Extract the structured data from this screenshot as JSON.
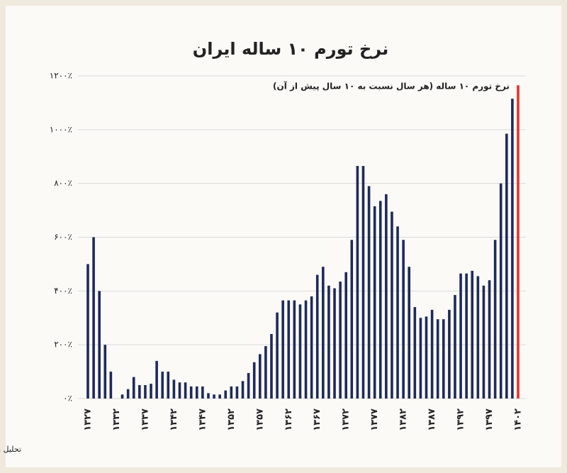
{
  "chart_data": {
    "type": "bar",
    "title": "نرخ تورم ۱۰ ساله ایران",
    "subtitle": "نرخ تورم ۱۰ ساله (هر سال نسبت به ۱۰ سال پیش از آن)",
    "source": "تحلیل و استنتاج: احسان سلطانی بر اساس داده های بانک مرکزی",
    "categories": [
      "۱۳۲۷",
      null,
      null,
      null,
      null,
      "۱۳۳۲",
      null,
      null,
      null,
      null,
      "۱۳۳۷",
      null,
      null,
      null,
      null,
      "۱۳۴۲",
      null,
      null,
      null,
      null,
      "۱۳۴۷",
      null,
      null,
      null,
      null,
      "۱۳۵۲",
      null,
      null,
      null,
      null,
      "۱۳۵۷",
      null,
      null,
      null,
      null,
      "۱۳۶۲",
      null,
      null,
      null,
      null,
      "۱۳۶۷",
      null,
      null,
      null,
      null,
      "۱۳۷۲",
      null,
      null,
      null,
      null,
      "۱۳۷۷",
      null,
      null,
      null,
      null,
      "۱۳۸۲",
      null,
      null,
      null,
      null,
      "۱۳۸۷",
      null,
      null,
      null,
      null,
      "۱۳۹۲",
      null,
      null,
      null,
      null,
      "۱۳۹۷",
      null,
      null,
      null,
      null,
      "۱۴۰۲"
    ],
    "values": [
      500,
      600,
      400,
      200,
      100,
      0,
      15,
      35,
      80,
      50,
      50,
      55,
      140,
      100,
      100,
      70,
      60,
      60,
      45,
      45,
      45,
      20,
      15,
      15,
      30,
      45,
      45,
      65,
      95,
      135,
      165,
      195,
      240,
      320,
      365,
      365,
      365,
      350,
      365,
      380,
      460,
      490,
      420,
      410,
      435,
      470,
      590,
      865,
      865,
      790,
      715,
      735,
      760,
      695,
      640,
      590,
      490,
      340,
      300,
      305,
      330,
      295,
      295,
      330,
      385,
      465,
      465,
      475,
      455,
      420,
      440,
      590,
      800,
      985,
      1115,
      1165
    ],
    "colors": [
      "#1f2a5c",
      "#1f2a5c",
      "#1f2a5c",
      "#1f2a5c",
      "#1f2a5c",
      "#1f2a5c",
      "#1f2a5c",
      "#1f2a5c",
      "#1f2a5c",
      "#1f2a5c",
      "#1f2a5c",
      "#1f2a5c",
      "#1f2a5c",
      "#1f2a5c",
      "#1f2a5c",
      "#1f2a5c",
      "#1f2a5c",
      "#1f2a5c",
      "#1f2a5c",
      "#1f2a5c",
      "#1f2a5c",
      "#1f2a5c",
      "#1f2a5c",
      "#1f2a5c",
      "#1f2a5c",
      "#1f2a5c",
      "#1f2a5c",
      "#1f2a5c",
      "#1f2a5c",
      "#1f2a5c",
      "#1f2a5c",
      "#1f2a5c",
      "#1f2a5c",
      "#1f2a5c",
      "#1f2a5c",
      "#1f2a5c",
      "#1f2a5c",
      "#1f2a5c",
      "#1f2a5c",
      "#1f2a5c",
      "#1f2a5c",
      "#1f2a5c",
      "#1f2a5c",
      "#1f2a5c",
      "#1f2a5c",
      "#1f2a5c",
      "#1f2a5c",
      "#1f2a5c",
      "#1f2a5c",
      "#1f2a5c",
      "#1f2a5c",
      "#1f2a5c",
      "#1f2a5c",
      "#1f2a5c",
      "#1f2a5c",
      "#1f2a5c",
      "#1f2a5c",
      "#1f2a5c",
      "#1f2a5c",
      "#1f2a5c",
      "#1f2a5c",
      "#1f2a5c",
      "#1f2a5c",
      "#1f2a5c",
      "#1f2a5c",
      "#1f2a5c",
      "#1f2a5c",
      "#1f2a5c",
      "#1f2a5c",
      "#1f2a5c",
      "#1f2a5c",
      "#1f2a5c",
      "#1f2a5c",
      "#1f2a5c",
      "#1f2a5c",
      "#e8312a"
    ],
    "ylim": [
      0,
      1200
    ],
    "yticks": [
      {
        "value": 0,
        "label": "۰٪"
      },
      {
        "value": 200,
        "label": "۲۰۰٪"
      },
      {
        "value": 400,
        "label": "۴۰۰٪"
      },
      {
        "value": 600,
        "label": "۶۰۰٪"
      },
      {
        "value": 800,
        "label": "۸۰۰٪"
      },
      {
        "value": 1000,
        "label": "۱۰۰۰٪"
      },
      {
        "value": 1200,
        "label": "۱۲۰۰٪"
      }
    ],
    "grid": true
  }
}
